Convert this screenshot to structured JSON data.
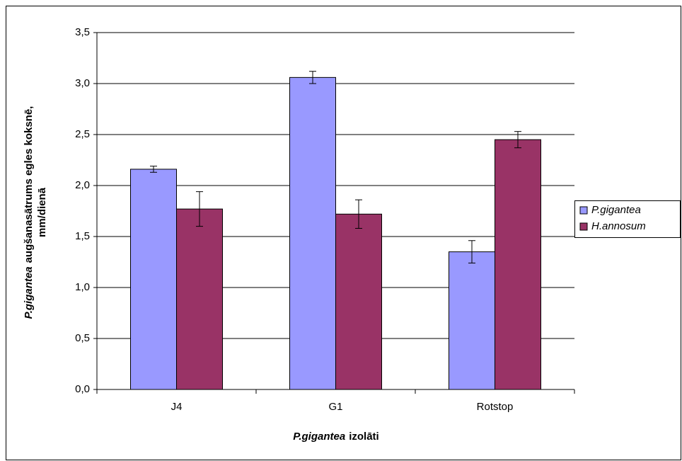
{
  "chart_data": {
    "type": "bar",
    "categories": [
      "J4",
      "G1",
      "Rotstop"
    ],
    "series": [
      {
        "name": "P.gigantea",
        "color": "#9999ff",
        "values": [
          2.16,
          3.06,
          1.35
        ],
        "errors": [
          0.03,
          0.06,
          0.11
        ]
      },
      {
        "name": "H.annosum",
        "color": "#993366",
        "values": [
          1.77,
          1.72,
          2.45
        ],
        "errors": [
          0.17,
          0.14,
          0.08
        ]
      }
    ],
    "ylim": [
      0,
      3.5
    ],
    "yticks": [
      {
        "value": 0,
        "label": "0,0"
      },
      {
        "value": 0.5,
        "label": "0,5"
      },
      {
        "value": 1,
        "label": "1,0"
      },
      {
        "value": 1.5,
        "label": "1,5"
      },
      {
        "value": 2,
        "label": "2,0"
      },
      {
        "value": 2.5,
        "label": "2,5"
      },
      {
        "value": 3,
        "label": "3,0"
      },
      {
        "value": 3.5,
        "label": "3,5"
      }
    ],
    "ylabel": [
      "P.gigantea",
      "augšanasātrums egles koksnē,",
      "mm/dienā"
    ],
    "xlabel": [
      "P.gigantea",
      "izolāti"
    ],
    "grid": true,
    "legend": "right"
  }
}
